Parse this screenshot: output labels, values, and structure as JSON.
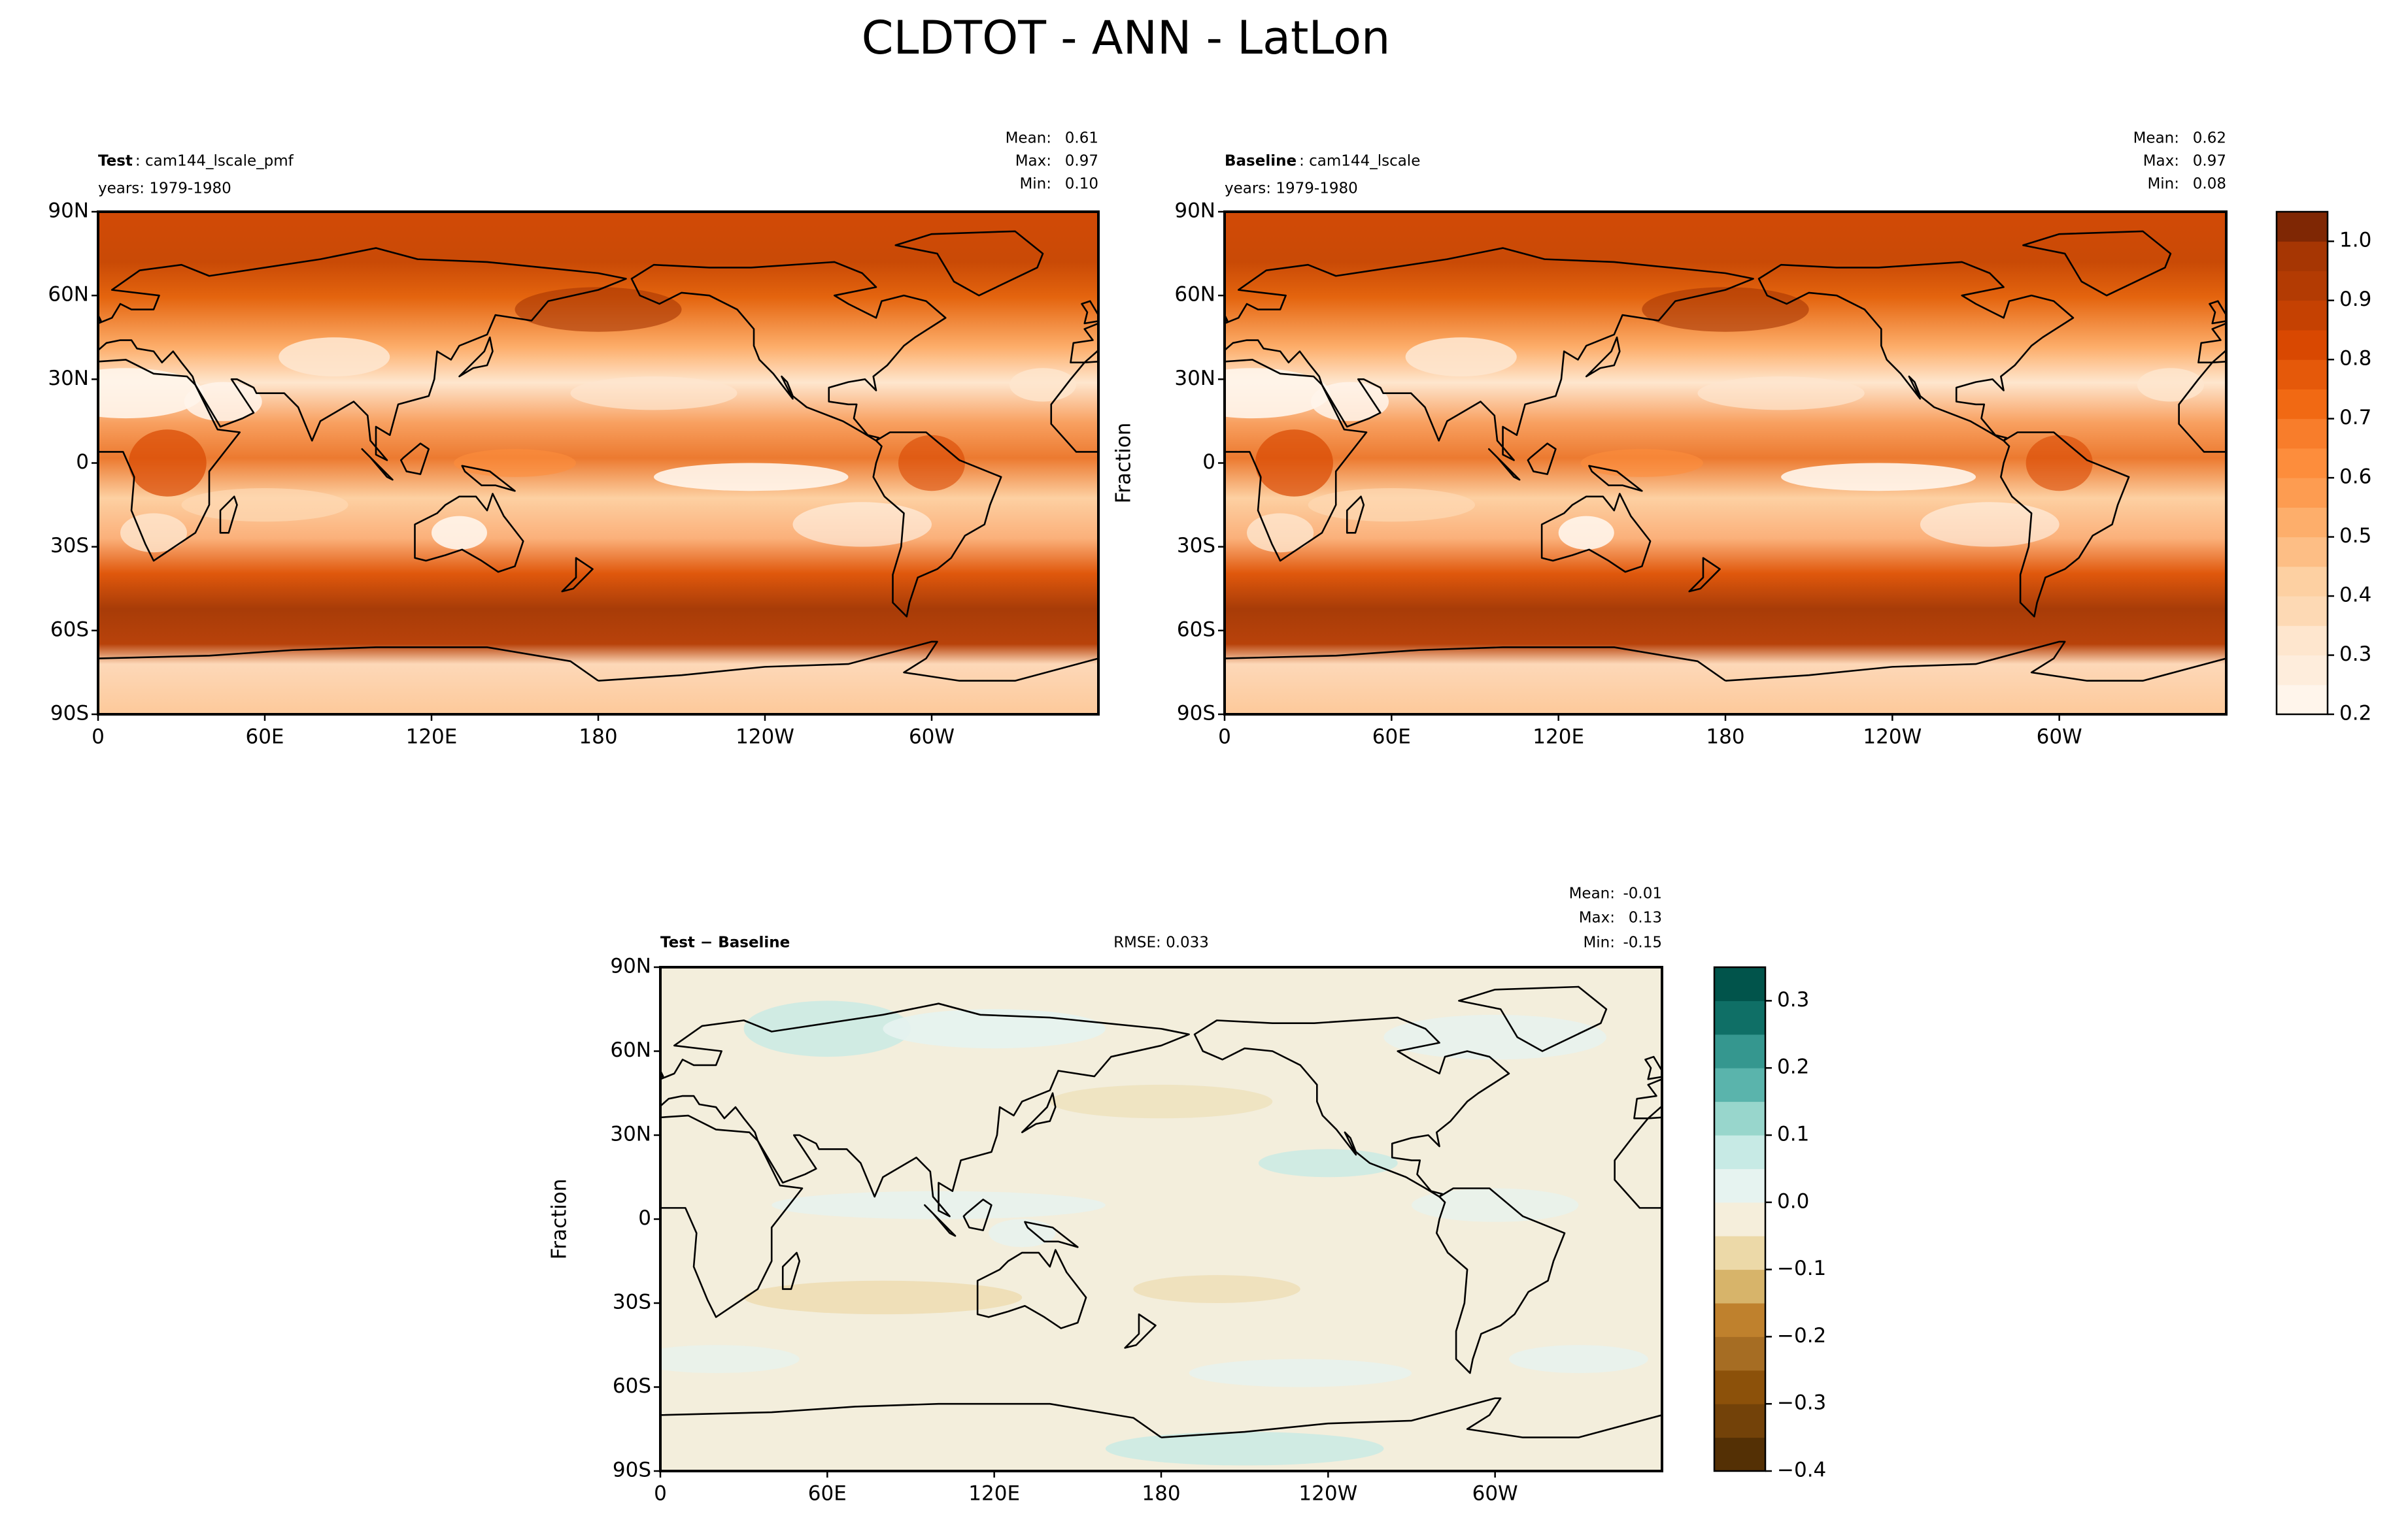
{
  "title": "CLDTOT - ANN - LatLon",
  "panels": [
    {
      "label": "Test",
      "case": ": cam144_lscale_pmf",
      "years": "years: 1979-1980",
      "stats": [
        {
          "label": "Mean:",
          "value": "0.61"
        },
        {
          "label": "Max:",
          "value": "0.97"
        },
        {
          "label": "Min:",
          "value": "0.10"
        }
      ],
      "xlim": [
        0,
        360
      ],
      "ylim": [
        -90,
        90
      ],
      "xticks": [
        0,
        {
          "value": 60,
          "label": "60E"
        },
        {
          "value": 120,
          "label": "120E"
        },
        180,
        {
          "value": 240,
          "label": "120W"
        },
        {
          "value": 300,
          "label": "60W"
        }
      ],
      "yticks": [
        {
          "value": 90,
          "label": "90N"
        },
        {
          "value": 60,
          "label": "60N"
        },
        {
          "value": 30,
          "label": "30N"
        },
        0,
        {
          "value": -30,
          "label": "30S"
        },
        {
          "value": -60,
          "label": "60S"
        },
        {
          "value": -90,
          "label": "90S"
        }
      ]
    },
    {
      "label": "Baseline",
      "case": ": cam144_lscale",
      "years": "years: 1979-1980",
      "ylabel": "Fraction",
      "stats": [
        {
          "label": "Mean:",
          "value": "0.62"
        },
        {
          "label": "Max:",
          "value": "0.97"
        },
        {
          "label": "Min:",
          "value": "0.08"
        }
      ],
      "xlim": [
        0,
        360
      ],
      "ylim": [
        -90,
        90
      ],
      "xticks": [
        0,
        {
          "value": 60,
          "label": "60E"
        },
        {
          "value": 120,
          "label": "120E"
        },
        180,
        {
          "value": 240,
          "label": "120W"
        },
        {
          "value": 300,
          "label": "60W"
        }
      ],
      "yticks": [
        {
          "value": 90,
          "label": "90N"
        },
        {
          "value": 60,
          "label": "60N"
        },
        {
          "value": 30,
          "label": "30N"
        },
        0,
        {
          "value": -30,
          "label": "30S"
        },
        {
          "value": -60,
          "label": "60S"
        },
        {
          "value": -90,
          "label": "90S"
        }
      ]
    },
    {
      "label": "Test − Baseline",
      "rmse": "RMSE: 0.033",
      "ylabel": "Fraction",
      "stats": [
        {
          "label": "Mean:",
          "value": "-0.01"
        },
        {
          "label": "Max:",
          "value": "0.13"
        },
        {
          "label": "Min:",
          "value": "-0.15"
        }
      ],
      "xlim": [
        0,
        360
      ],
      "ylim": [
        -90,
        90
      ],
      "xticks": [
        0,
        {
          "value": 60,
          "label": "60E"
        },
        {
          "value": 120,
          "label": "120E"
        },
        180,
        {
          "value": 240,
          "label": "120W"
        },
        {
          "value": 300,
          "label": "60W"
        }
      ],
      "yticks": [
        {
          "value": 90,
          "label": "90N"
        },
        {
          "value": 60,
          "label": "60N"
        },
        {
          "value": 30,
          "label": "30N"
        },
        0,
        {
          "value": -30,
          "label": "30S"
        },
        {
          "value": -60,
          "label": "60S"
        },
        {
          "value": -90,
          "label": "90S"
        }
      ]
    }
  ],
  "colorbars": [
    {
      "lim": [
        0.2,
        1.05
      ],
      "ticks": [
        0.2,
        0.3,
        0.4,
        0.5,
        0.6,
        0.7,
        0.8,
        0.9,
        {
          "value": 1,
          "label": "1.0"
        }
      ],
      "colors": [
        "#fff5eb",
        "#feeddc",
        "#fee6ce",
        "#fdd9b4",
        "#fdd0a2",
        "#fdbe85",
        "#fdae6b",
        "#fd9c51",
        "#fd8d3c",
        "#f87d2b",
        "#f16913",
        "#e5590a",
        "#d94801",
        "#c54102",
        "#b33b03",
        "#a63603",
        "#7f2704"
      ]
    },
    {
      "lim": [
        -0.4,
        0.35
      ],
      "ticks": [
        {
          "value": -0.4,
          "label": "−0.4"
        },
        {
          "value": -0.3,
          "label": "−0.3"
        },
        {
          "value": -0.2,
          "label": "−0.2"
        },
        {
          "value": -0.1,
          "label": "−0.1"
        },
        {
          "value": 0,
          "label": "0.0"
        },
        0.1,
        0.2,
        0.3
      ],
      "colors": [
        "#543005",
        "#734209",
        "#8c510a",
        "#a66d23",
        "#bf812d",
        "#d7b46a",
        "#ecd9a8",
        "#f5eedb",
        "#e6f3f0",
        "#c7eae5",
        "#98d6cc",
        "#5ab4ac",
        "#35978f",
        "#0f6f66",
        "#01544b"
      ]
    }
  ]
}
